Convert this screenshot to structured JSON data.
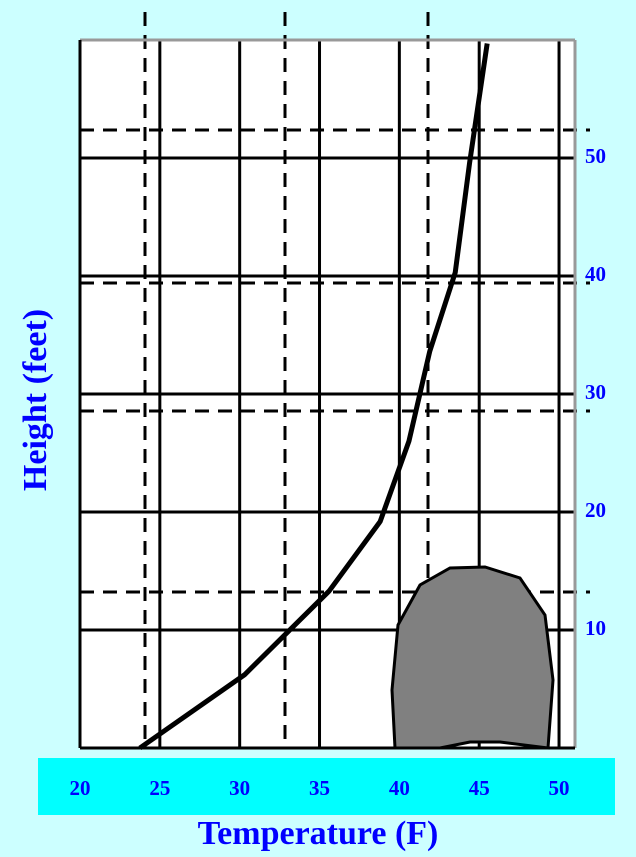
{
  "chart_data": {
    "type": "line",
    "x_label": "Temperature (F)",
    "y_label": "Height (feet)",
    "x": [
      23.75,
      30.3,
      35.6,
      38.8,
      40.6,
      41.9,
      43.5,
      44.4,
      45.5
    ],
    "series": [
      {
        "color": "#000000",
        "values": [
          0,
          6.2,
          13.3,
          19.2,
          26,
          33.6,
          40.3,
          49.6,
          59.7
        ]
      }
    ],
    "xlim": [
      20,
      51
    ],
    "xticks": [
      20,
      25,
      30,
      35,
      40,
      45,
      50
    ],
    "ylim": [
      0,
      60
    ],
    "yticks": [
      10,
      20,
      30,
      40,
      50
    ],
    "grid": true
  }
}
